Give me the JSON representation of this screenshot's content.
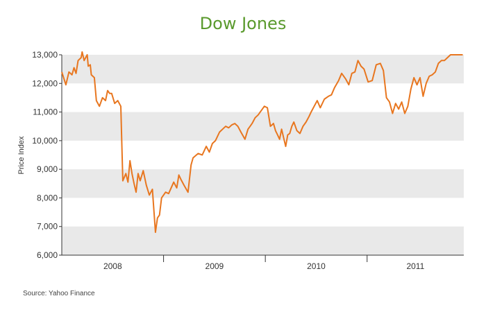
{
  "chart_data": {
    "type": "line",
    "title": "Dow Jones",
    "xlabel": "",
    "ylabel": "Price Index",
    "ylim": [
      6000,
      13000
    ],
    "yticks": [
      6000,
      7000,
      8000,
      9000,
      10000,
      11000,
      12000,
      13000
    ],
    "ytick_labels": [
      "6,000",
      "7,000",
      "8,000",
      "9,000",
      "10,000",
      "11,000",
      "12,000",
      "13,000"
    ],
    "x_categories": [
      "2008",
      "2009",
      "2010",
      "2011"
    ],
    "xlim": [
      2008.0,
      2011.95
    ],
    "grid": "alternating horizontal bands",
    "series": [
      {
        "name": "",
        "color": "#e8761f",
        "x": [
          2008.0,
          2008.04,
          2008.07,
          2008.1,
          2008.12,
          2008.14,
          2008.16,
          2008.19,
          2008.2,
          2008.22,
          2008.25,
          2008.26,
          2008.28,
          2008.29,
          2008.32,
          2008.34,
          2008.37,
          2008.4,
          2008.43,
          2008.45,
          2008.47,
          2008.49,
          2008.52,
          2008.55,
          2008.58,
          2008.6,
          2008.63,
          2008.65,
          2008.67,
          2008.69,
          2008.71,
          2008.73,
          2008.75,
          2008.77,
          2008.8,
          2008.83,
          2008.86,
          2008.89,
          2008.92,
          2008.94,
          2008.96,
          2008.98,
          2009.02,
          2009.05,
          2009.1,
          2009.13,
          2009.15,
          2009.17,
          2009.2,
          2009.24,
          2009.27,
          2009.29,
          2009.34,
          2009.38,
          2009.42,
          2009.45,
          2009.48,
          2009.51,
          2009.55,
          2009.58,
          2009.61,
          2009.64,
          2009.67,
          2009.7,
          2009.73,
          2009.76,
          2009.8,
          2009.83,
          2009.85,
          2009.87,
          2009.9,
          2009.93,
          2009.95,
          2009.97,
          2009.99,
          2010.02,
          2010.05,
          2010.08,
          2010.1,
          2010.12,
          2010.14,
          2010.16,
          2010.18,
          2010.2,
          2010.22,
          2010.24,
          2010.26,
          2010.28,
          2010.31,
          2010.34,
          2010.37,
          2010.4,
          2010.43,
          2010.45,
          2010.48,
          2010.51,
          2010.54,
          2010.58,
          2010.62,
          2010.65,
          2010.68,
          2010.72,
          2010.75,
          2010.79,
          2010.82,
          2010.85,
          2010.88,
          2010.91,
          2010.94,
          2010.97,
          2011.01,
          2011.05,
          2011.09,
          2011.13,
          2011.16,
          2011.19,
          2011.22,
          2011.25,
          2011.28,
          2011.31,
          2011.34,
          2011.37,
          2011.4,
          2011.43,
          2011.46,
          2011.49,
          2011.52,
          2011.55,
          2011.58,
          2011.61,
          2011.64,
          2011.67,
          2011.7,
          2011.73,
          2011.76,
          2011.79,
          2011.82,
          2011.85,
          2011.88,
          2011.91,
          2011.94
        ],
        "y": [
          12400,
          11950,
          12400,
          12300,
          12550,
          12350,
          12800,
          12900,
          13100,
          12800,
          13000,
          12600,
          12650,
          12300,
          12200,
          11400,
          11200,
          11500,
          11400,
          11750,
          11650,
          11650,
          11300,
          11400,
          11200,
          8600,
          8850,
          8550,
          9300,
          8850,
          8500,
          8200,
          8850,
          8600,
          8950,
          8450,
          8100,
          8300,
          6800,
          7300,
          7400,
          8000,
          8200,
          8150,
          8550,
          8350,
          8800,
          8650,
          8450,
          8200,
          9150,
          9400,
          9550,
          9500,
          9800,
          9600,
          9900,
          10000,
          10300,
          10400,
          10500,
          10450,
          10550,
          10600,
          10500,
          10300,
          10050,
          10400,
          10500,
          10600,
          10800,
          10900,
          11000,
          11100,
          11200,
          11150,
          10500,
          10600,
          10350,
          10200,
          10050,
          10400,
          10100,
          9800,
          10200,
          10250,
          10500,
          10650,
          10350,
          10250,
          10500,
          10650,
          10850,
          11000,
          11200,
          11400,
          11150,
          11450,
          11550,
          11600,
          11850,
          12100,
          12350,
          12150,
          11950,
          12350,
          12400,
          12800,
          12600,
          12500,
          12050,
          12100,
          12650,
          12700,
          12450,
          11500,
          11350,
          10950,
          11300,
          11100,
          11350,
          10950,
          11200,
          11800,
          12200,
          11950,
          12200,
          11550,
          12000,
          12250,
          12300,
          12400,
          12700,
          12800,
          12800,
          12900,
          13000,
          13000,
          13000,
          13000,
          13000
        ],
        "_note_removed": ""
      }
    ],
    "source": "Source: Yahoo Finance"
  }
}
